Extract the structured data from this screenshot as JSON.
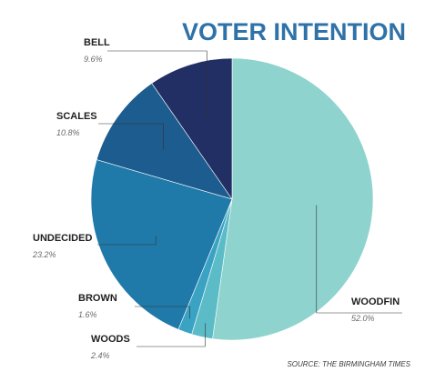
{
  "chart_data": {
    "type": "pie",
    "title": "VOTER INTENTION",
    "source": "SOURCE: THE BIRMINGHAM TIMES",
    "slices": [
      {
        "label": "WOODFIN",
        "value": 52.0,
        "display": "52.0%",
        "color": "#8fd3cf"
      },
      {
        "label": "WOODS",
        "value": 2.4,
        "display": "2.4%",
        "color": "#5bbcc7"
      },
      {
        "label": "BROWN",
        "value": 1.6,
        "display": "1.6%",
        "color": "#3aa3c4"
      },
      {
        "label": "UNDECIDED",
        "value": 23.2,
        "display": "23.2%",
        "color": "#1f7aaa"
      },
      {
        "label": "SCALES",
        "value": 10.8,
        "display": "10.8%",
        "color": "#1d5c8e"
      },
      {
        "label": "BELL",
        "value": 9.6,
        "display": "9.6%",
        "color": "#222f64"
      }
    ]
  }
}
